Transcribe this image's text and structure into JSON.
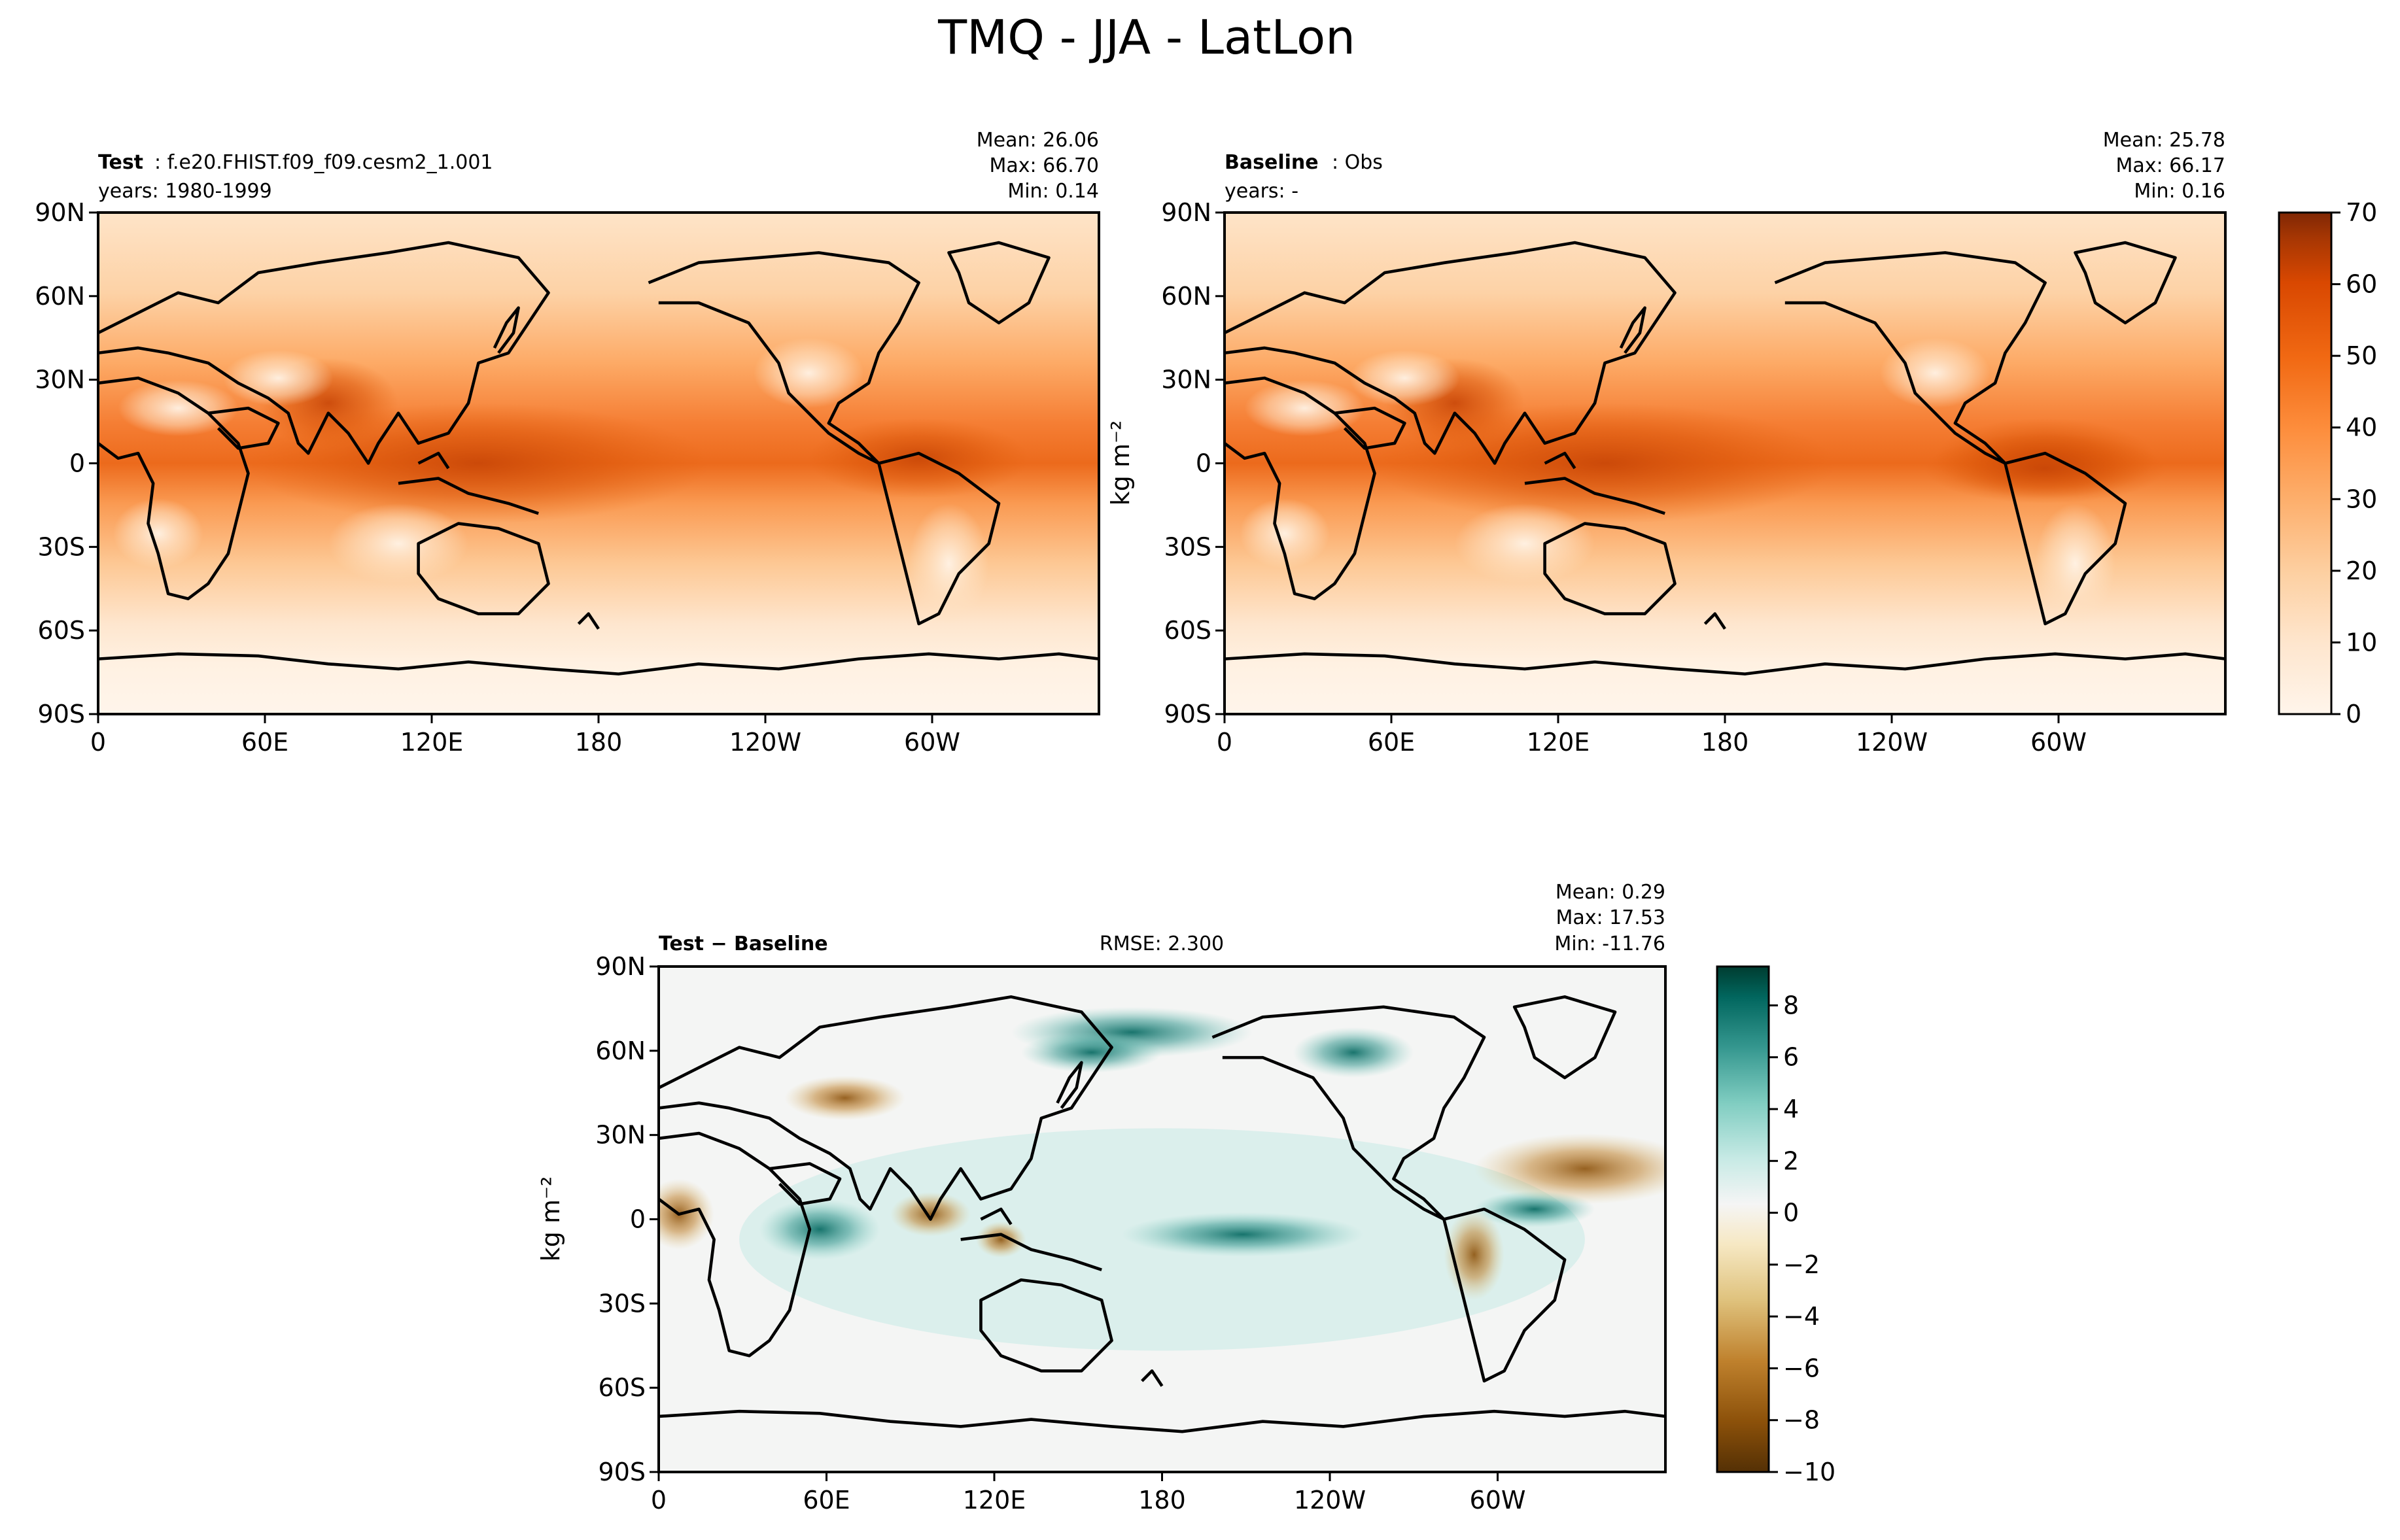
{
  "figure": {
    "title": "TMQ - JJA - LatLon"
  },
  "colors": {
    "seq_scale": [
      "#fff5eb",
      "#fee6ce",
      "#fdd0a2",
      "#fdae6b",
      "#fd8d3c",
      "#f16913",
      "#d94801",
      "#a63603",
      "#7f2704"
    ],
    "div_scale": [
      "#543005",
      "#8c510a",
      "#bf812d",
      "#dfc27d",
      "#f6e8c3",
      "#f5f5f5",
      "#c7eae5",
      "#80cdc1",
      "#35978f",
      "#01665e",
      "#003c30"
    ],
    "coast": "#000000"
  },
  "chart_data": [
    {
      "type": "heatmap",
      "panel": "test",
      "label_bold": "Test",
      "label_rest": ": f.e20.FHIST.f09_f09.cesm2_1.001",
      "years": "years: 1980-1999",
      "stats": {
        "mean": "Mean: 26.06",
        "max": "Max: 66.70",
        "min": "Min:  0.14"
      },
      "x_ticks": [
        "0",
        "60E",
        "120E",
        "180",
        "120W",
        "60W"
      ],
      "y_ticks": [
        "90N",
        "60N",
        "30N",
        "0",
        "30S",
        "60S",
        "90S"
      ],
      "xlim": [
        0,
        360
      ],
      "ylim": [
        -90,
        90
      ],
      "zlim": [
        0,
        70
      ]
    },
    {
      "type": "heatmap",
      "panel": "baseline",
      "label_bold": "Baseline",
      "label_rest": ": Obs",
      "years": "years: -",
      "stats": {
        "mean": "Mean: 25.78",
        "max": "Max: 66.17",
        "min": "Min:  0.16"
      },
      "x_ticks": [
        "0",
        "60E",
        "120E",
        "180",
        "120W",
        "60W"
      ],
      "y_ticks": [
        "90N",
        "60N",
        "30N",
        "0",
        "30S",
        "60S",
        "90S"
      ],
      "xlim": [
        0,
        360
      ],
      "ylim": [
        -90,
        90
      ],
      "zlim": [
        0,
        70
      ],
      "colorbar": {
        "ticks": [
          "0",
          "10",
          "20",
          "30",
          "40",
          "50",
          "60",
          "70"
        ],
        "label": "kg m⁻²"
      }
    },
    {
      "type": "heatmap",
      "panel": "difference",
      "label_bold": "Test − Baseline",
      "rmse": "RMSE: 2.300",
      "stats": {
        "mean": "Mean:  0.29",
        "max": "Max: 17.53",
        "min": "Min: -11.76"
      },
      "x_ticks": [
        "0",
        "60E",
        "120E",
        "180",
        "120W",
        "60W"
      ],
      "y_ticks": [
        "90N",
        "60N",
        "30N",
        "0",
        "30S",
        "60S",
        "90S"
      ],
      "xlim": [
        0,
        360
      ],
      "ylim": [
        -90,
        90
      ],
      "zlim": [
        -10,
        9
      ],
      "ylabel": "kg m⁻²",
      "colorbar": {
        "ticks": [
          "8",
          "6",
          "4",
          "2",
          "0",
          "−2",
          "−4",
          "−6",
          "−8",
          "−10"
        ],
        "label": ""
      }
    }
  ]
}
